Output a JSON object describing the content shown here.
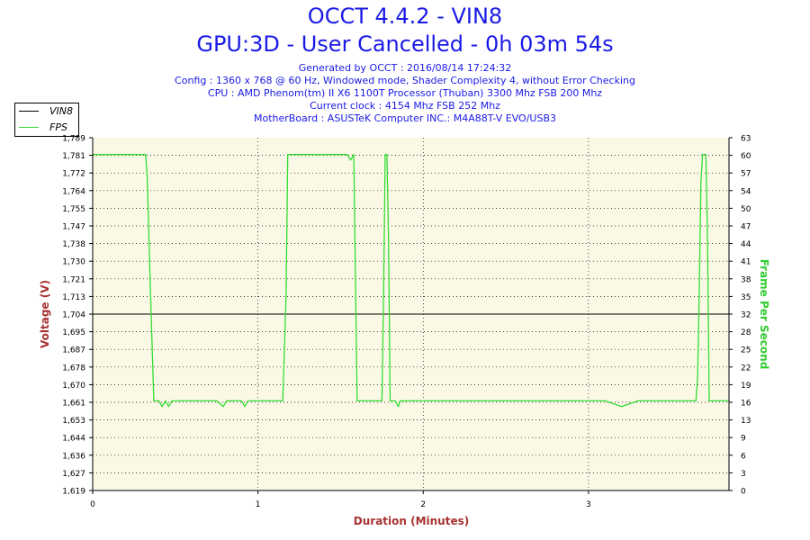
{
  "title": "OCCT 4.4.2 - VIN8",
  "subtitle": "GPU:3D - User Cancelled - 0h 03m 54s",
  "info_lines": [
    "Generated by OCCT : 2016/08/14 17:24:32",
    "Config : 1360 x 768 @ 60 Hz, Windowed mode, Shader Complexity 4, without Error Checking",
    "CPU : AMD Phenom(tm) II X6 1100T Processor (Thuban) 3300 Mhz FSB 200 Mhz",
    "Current clock : 4154 Mhz FSB 252 Mhz",
    "MotherBoard : ASUSTeK Computer INC.: M4A88T-V EVO/USB3"
  ],
  "colors": {
    "title": "#1a1ae6",
    "plot_bg": "#fbf8e6",
    "vin8": "#000000",
    "fps": "#33dd33",
    "left_axis_label": "#a83232",
    "right_axis_label": "#33cc33",
    "x_axis_label": "#a83232"
  },
  "chart_data": {
    "type": "line",
    "xlabel": "Duration (Minutes)",
    "ylabel": "Voltage (V)",
    "y2label": "Frame Per Second",
    "xlim": [
      0,
      3.85
    ],
    "ylim": [
      1.619,
      1.789
    ],
    "y2lim": [
      0,
      63
    ],
    "x_ticks": [
      "0",
      "1",
      "2",
      "3"
    ],
    "y_ticks": [
      "1,619",
      "1,627",
      "1,636",
      "1,644",
      "1,653",
      "1,661",
      "1,670",
      "1,678",
      "1,687",
      "1,695",
      "1,704",
      "1,713",
      "1,721",
      "1,730",
      "1,738",
      "1,747",
      "1,755",
      "1,764",
      "1,772",
      "1,781",
      "1,789"
    ],
    "y2_ticks": [
      "0",
      "3",
      "6",
      "9",
      "13",
      "16",
      "19",
      "22",
      "25",
      "28",
      "32",
      "35",
      "38",
      "41",
      "44",
      "47",
      "50",
      "54",
      "57",
      "60",
      "63"
    ],
    "grid": true,
    "legend": "top-left outside",
    "series": [
      {
        "name": "VIN8",
        "axis": "left",
        "x": [
          0,
          3.85
        ],
        "y": [
          1.704,
          1.704
        ]
      },
      {
        "name": "FPS",
        "axis": "right",
        "x": [
          0,
          0.32,
          0.33,
          0.35,
          0.37,
          0.4,
          0.42,
          0.44,
          0.46,
          0.48,
          0.55,
          0.65,
          0.75,
          0.79,
          0.81,
          0.83,
          0.9,
          0.92,
          0.94,
          0.96,
          1.0,
          1.1,
          1.15,
          1.17,
          1.18,
          1.2,
          1.3,
          1.4,
          1.5,
          1.54,
          1.56,
          1.58,
          1.6,
          1.62,
          1.65,
          1.7,
          1.73,
          1.75,
          1.76,
          1.77,
          1.78,
          1.79,
          1.8,
          1.81,
          1.83,
          1.85,
          1.86,
          1.87,
          1.9,
          2.0,
          2.2,
          2.4,
          2.6,
          2.8,
          3.0,
          3.1,
          3.2,
          3.3,
          3.4,
          3.5,
          3.6,
          3.65,
          3.66,
          3.67,
          3.68,
          3.69,
          3.71,
          3.72,
          3.73,
          3.75,
          3.8,
          3.85
        ],
        "y": [
          60,
          60,
          56,
          35,
          16,
          16,
          15,
          16,
          15,
          16,
          16,
          16,
          16,
          15,
          16,
          16,
          16,
          15,
          16,
          16,
          16,
          16,
          16,
          35,
          60,
          60,
          60,
          60,
          60,
          60,
          59,
          60,
          16,
          16,
          16,
          16,
          16,
          16,
          35,
          60,
          60,
          45,
          16,
          16,
          16,
          15,
          16,
          16,
          16,
          16,
          16,
          16,
          16,
          16,
          16,
          16,
          15,
          16,
          16,
          16,
          16,
          16,
          20,
          35,
          55,
          60,
          60,
          45,
          16,
          16,
          16,
          16
        ]
      }
    ]
  }
}
